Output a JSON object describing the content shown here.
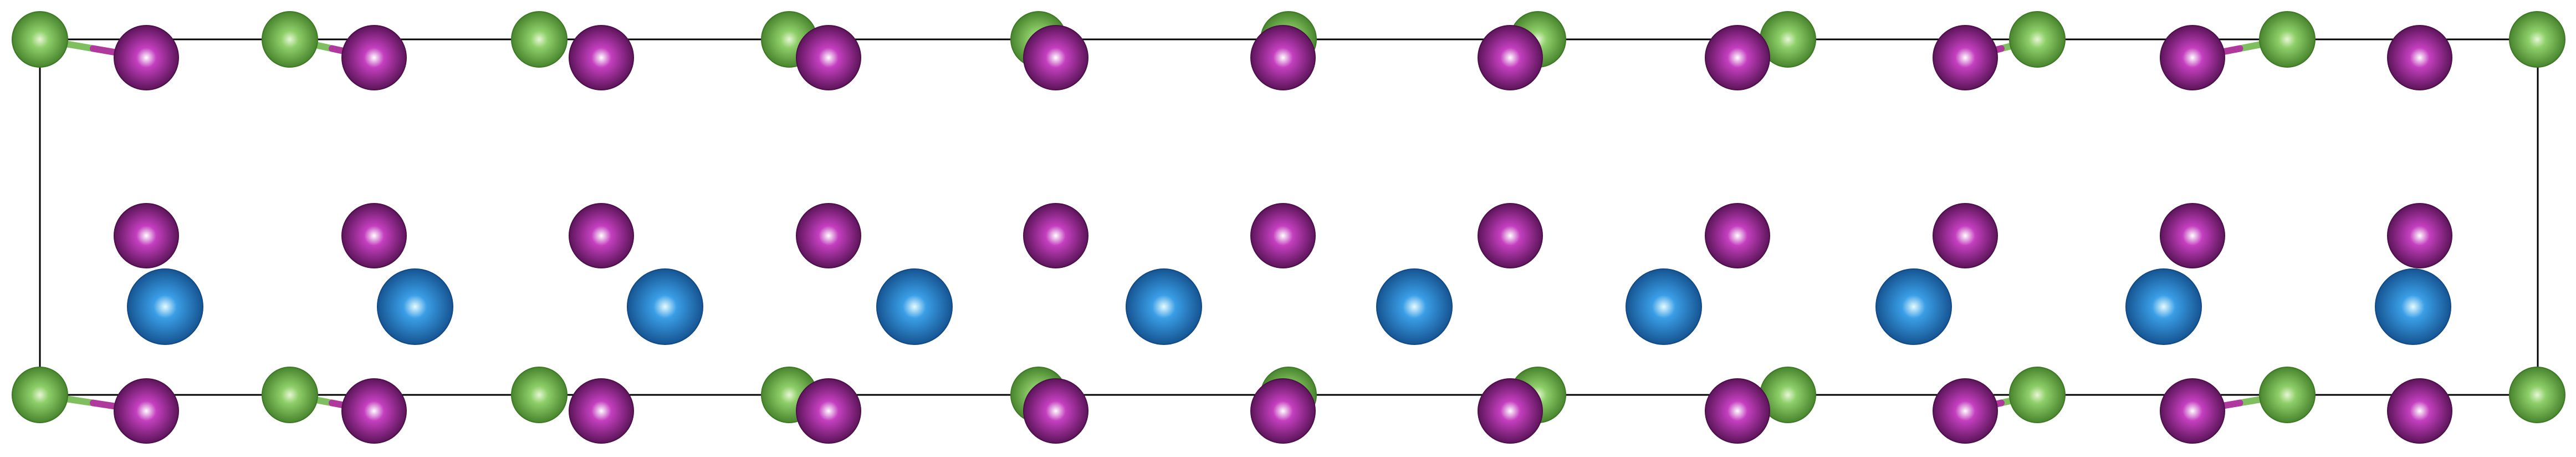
{
  "figure": {
    "type": "crystal-structure",
    "background": "#ffffff",
    "cell_outline_color": "#000000"
  },
  "atom_species": [
    {
      "name": "green-atom",
      "highlight": "#e6f7d4",
      "base": "#8fcf6a",
      "shade": "#3e7a25"
    },
    {
      "name": "magenta-atom",
      "highlight": "#ffffff",
      "base": "#c43fbf",
      "shade": "#4e0f4c"
    },
    {
      "name": "blue-atom",
      "highlight": "#e6fbff",
      "base": "#3a9ee6",
      "shade": "#114a86"
    }
  ],
  "bond_colors": {
    "green_part": "#7fbf60",
    "magenta_part": "#b0399d"
  }
}
